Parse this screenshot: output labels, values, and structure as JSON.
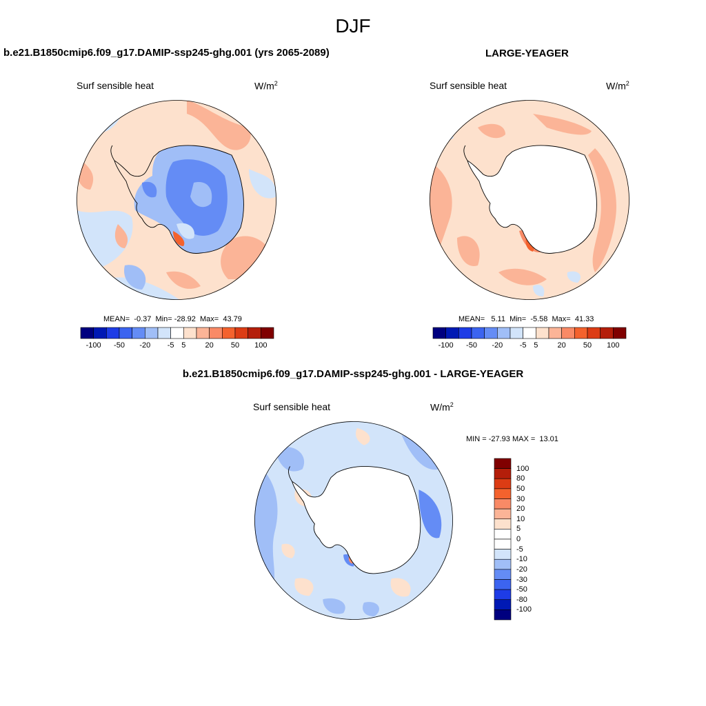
{
  "title": "DJF",
  "palette": [
    "#00007f",
    "#0019b4",
    "#1e3ce6",
    "#3c64f0",
    "#648cf5",
    "#a0bef7",
    "#d2e4fa",
    "#ffffff",
    "#fde1cd",
    "#fbb497",
    "#f98a66",
    "#f4622d",
    "#dc3c14",
    "#b41e0a",
    "#800000"
  ],
  "panels": [
    {
      "name": "b.e21.B1850cmip6.f09_g17.DAMIP-ssp245-ghg.001 (yrs 2065-2089)",
      "variable": "Surf sensible heat",
      "units_base": "W/m",
      "units_exp": "2",
      "stats": "MEAN=  -0.37  Min= -28.92  Max=  43.79",
      "colorbar_labels": [
        "-100",
        "-50",
        "-20",
        "-5",
        "5",
        "20",
        "50",
        "100"
      ]
    },
    {
      "name": "LARGE-YEAGER",
      "variable": "Surf sensible heat",
      "units_base": "W/m",
      "units_exp": "2",
      "stats": "MEAN=   5.11  Min=  -5.58  Max=  41.33",
      "colorbar_labels": [
        "-100",
        "-50",
        "-20",
        "-5",
        "5",
        "20",
        "50",
        "100"
      ]
    },
    {
      "name": "b.e21.B1850cmip6.f09_g17.DAMIP-ssp245-ghg.001 - LARGE-YEAGER",
      "variable": "Surf sensible heat",
      "units_base": "W/m",
      "units_exp": "2",
      "stats": "MIN = -27.93 MAX =  13.01",
      "colorbar_labels": [
        "100",
        "80",
        "50",
        "30",
        "20",
        "10",
        "5",
        "0",
        "-5",
        "-10",
        "-20",
        "-30",
        "-50",
        "-80",
        "-100"
      ]
    }
  ]
}
